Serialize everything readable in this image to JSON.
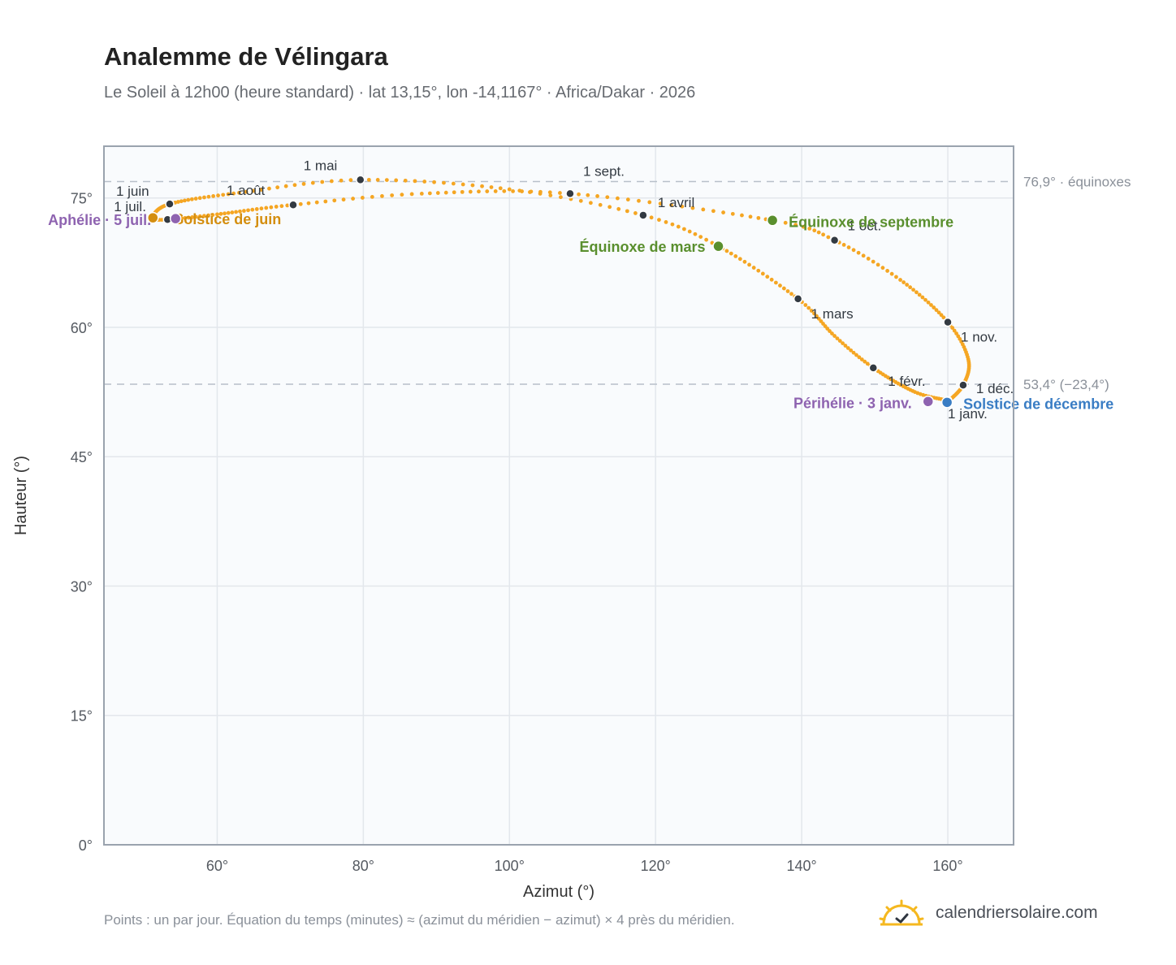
{
  "header": {
    "title": "Analemme de Vélingara",
    "subtitle": "Le Soleil à 12h00 (heure standard) · lat 13,15°, lon -14,1167° · Africa/Dakar · 2026"
  },
  "footer": {
    "note": "Points : un par jour. Équation du temps (minutes) ≈ (azimut du méridien − azimut) × 4 près du méridien.",
    "brand": "calendriersolaire.com"
  },
  "colors": {
    "curve": "#f5a623",
    "month_dot": "#333a42",
    "equinox": "#5a8f2e",
    "solstice_june": "#d48e0f",
    "solstice_december": "#3a7dc4",
    "apsis": "#8e63b0",
    "plot_bg": "#f9fbfd",
    "grid": "#e3e7ec",
    "frame": "#9aa3ae",
    "reference_line": "#b8c0ca"
  },
  "chart_data": {
    "type": "scatter",
    "xlabel": "Azimut (°)",
    "ylabel": "Hauteur (°)",
    "xlim": [
      44.5,
      169
    ],
    "ylim": [
      0,
      81
    ],
    "x_ticks": [
      60,
      80,
      100,
      120,
      140,
      160
    ],
    "x_tick_labels": [
      "60°",
      "80°",
      "100°",
      "120°",
      "140°",
      "160°"
    ],
    "y_ticks": [
      0,
      15,
      30,
      45,
      60,
      75
    ],
    "y_tick_labels": [
      "0°",
      "15°",
      "30°",
      "45°",
      "60°",
      "75°"
    ],
    "grid": true,
    "reference_lines": [
      {
        "y": 76.9,
        "label": "76,9° · équinoxes"
      },
      {
        "y": 53.4,
        "label": "53,4° (−23,4°)"
      }
    ],
    "curve_anchors": [
      {
        "date": "01-01",
        "az": 160.0,
        "alt": 51.5
      },
      {
        "date": "01-15",
        "az": 155.5,
        "alt": 52.5
      },
      {
        "date": "02-01",
        "az": 149.8,
        "alt": 55.3
      },
      {
        "date": "02-15",
        "az": 144.5,
        "alt": 59.0
      },
      {
        "date": "03-01",
        "az": 139.5,
        "alt": 63.3
      },
      {
        "date": "03-20",
        "az": 128.6,
        "alt": 69.4
      },
      {
        "date": "04-01",
        "az": 118.3,
        "alt": 73.0
      },
      {
        "date": "04-15",
        "az": 100.0,
        "alt": 76.0
      },
      {
        "date": "05-01",
        "az": 79.6,
        "alt": 77.1
      },
      {
        "date": "05-15",
        "az": 63.0,
        "alt": 75.6
      },
      {
        "date": "06-01",
        "az": 53.5,
        "alt": 74.3
      },
      {
        "date": "06-21",
        "az": 51.2,
        "alt": 72.7
      },
      {
        "date": "07-01",
        "az": 53.2,
        "alt": 72.5
      },
      {
        "date": "07-15",
        "az": 60.0,
        "alt": 73.1
      },
      {
        "date": "08-01",
        "az": 70.4,
        "alt": 74.2
      },
      {
        "date": "08-15",
        "az": 88.0,
        "alt": 75.5
      },
      {
        "date": "09-01",
        "az": 108.3,
        "alt": 75.5
      },
      {
        "date": "09-22",
        "az": 136.0,
        "alt": 72.4
      },
      {
        "date": "10-01",
        "az": 144.5,
        "alt": 70.1
      },
      {
        "date": "10-15",
        "az": 153.5,
        "alt": 65.5
      },
      {
        "date": "11-01",
        "az": 160.0,
        "alt": 60.6
      },
      {
        "date": "11-15",
        "az": 162.8,
        "alt": 56.3
      },
      {
        "date": "12-01",
        "az": 162.1,
        "alt": 53.3
      },
      {
        "date": "12-21",
        "az": 159.9,
        "alt": 51.3
      },
      {
        "date": "12-31",
        "az": 160.0,
        "alt": 51.5
      }
    ],
    "month_markers": [
      {
        "label": "1 janv.",
        "az": 160.0,
        "alt": 51.5
      },
      {
        "label": "1 févr.",
        "az": 149.8,
        "alt": 55.3
      },
      {
        "label": "1 mars",
        "az": 139.5,
        "alt": 63.3
      },
      {
        "label": "1 avril",
        "az": 118.3,
        "alt": 73.0
      },
      {
        "label": "1 mai",
        "az": 79.6,
        "alt": 77.1
      },
      {
        "label": "1 juin",
        "az": 53.5,
        "alt": 74.3
      },
      {
        "label": "1 juil.",
        "az": 53.2,
        "alt": 72.5
      },
      {
        "label": "1 août",
        "az": 70.4,
        "alt": 74.2
      },
      {
        "label": "1 sept.",
        "az": 108.3,
        "alt": 75.5
      },
      {
        "label": "1 oct.",
        "az": 144.5,
        "alt": 70.1
      },
      {
        "label": "1 nov.",
        "az": 160.0,
        "alt": 60.6
      },
      {
        "label": "1 déc.",
        "az": 162.1,
        "alt": 53.3
      }
    ],
    "events": [
      {
        "label": "Équinoxe de mars",
        "az": 128.6,
        "alt": 69.4,
        "color_key": "equinox"
      },
      {
        "label": "Équinoxe de septembre",
        "az": 136.0,
        "alt": 72.4,
        "color_key": "equinox"
      },
      {
        "label": "Solstice de juin",
        "az": 51.2,
        "alt": 72.7,
        "color_key": "solstice_june"
      },
      {
        "label": "Solstice de décembre",
        "az": 159.9,
        "alt": 51.3,
        "color_key": "solstice_december"
      },
      {
        "label": "Aphélie · 5 juil.",
        "az": 54.3,
        "alt": 72.6,
        "color_key": "apsis"
      },
      {
        "label": "Périhélie · 3 janv.",
        "az": 157.3,
        "alt": 51.4,
        "color_key": "apsis"
      }
    ]
  }
}
